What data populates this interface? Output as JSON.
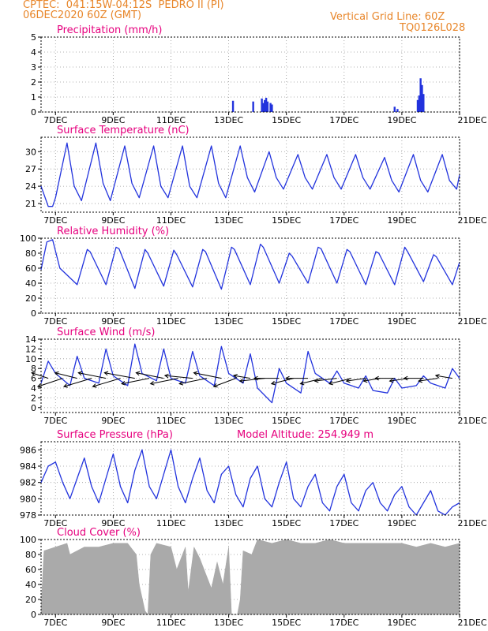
{
  "header": {
    "line1_left": "CPTEC:  041:15W-04:12S  PEDRO II (PI)",
    "line2_left": "06DEC2020 60Z (GMT)",
    "line1_right": "Vertical Grid Line: 60Z",
    "line2_right": "TQ0126L028",
    "color": "#e8862a"
  },
  "colors": {
    "title": "#e6007e",
    "series": "#2233dd",
    "cloud": "#aaaaaa",
    "grid": "#999999",
    "axis": "#000000"
  },
  "x_axis": {
    "ticks": [
      "7DEC",
      "9DEC",
      "11DEC",
      "13DEC",
      "15DEC",
      "17DEC",
      "19DEC",
      "21DEC"
    ],
    "tick_days": [
      7,
      9,
      11,
      13,
      15,
      17,
      19,
      21
    ],
    "range_days": [
      6.5,
      21
    ]
  },
  "chart_data": [
    {
      "id": "precip",
      "type": "bar",
      "title": "Precipitation (mm/h)",
      "ylim": [
        0,
        5
      ],
      "yticks": [
        0,
        1,
        2,
        3,
        4,
        5
      ],
      "x_days": [
        13.15,
        13.85,
        14.15,
        14.2,
        14.25,
        14.3,
        14.35,
        14.45,
        14.5,
        18.75,
        18.85,
        19.55,
        19.6,
        19.65,
        19.7,
        19.75
      ],
      "values": [
        0.75,
        0.7,
        0.9,
        0.6,
        0.8,
        0.95,
        0.7,
        0.6,
        0.5,
        0.35,
        0.2,
        0.8,
        1.1,
        2.25,
        1.8,
        1.2
      ]
    },
    {
      "id": "temp",
      "type": "line",
      "title": "Surface Temperature (nC)",
      "ylim": [
        19.5,
        32.5
      ],
      "yticks": [
        21,
        24,
        27,
        30
      ],
      "x_days": [
        6.5,
        6.75,
        6.9,
        7.0,
        7.4,
        7.65,
        7.9,
        8.4,
        8.65,
        8.9,
        9.4,
        9.65,
        9.9,
        10.4,
        10.65,
        10.9,
        11.4,
        11.65,
        11.9,
        12.4,
        12.65,
        12.9,
        13.4,
        13.65,
        13.9,
        14.4,
        14.65,
        14.9,
        15.4,
        15.65,
        15.9,
        16.4,
        16.65,
        16.9,
        17.4,
        17.65,
        17.9,
        18.4,
        18.65,
        18.9,
        19.4,
        19.65,
        19.9,
        20.4,
        20.65,
        20.9,
        21.0
      ],
      "values": [
        24.0,
        20.5,
        20.5,
        22.0,
        31.5,
        24.0,
        21.5,
        31.5,
        24.5,
        21.5,
        31.0,
        24.5,
        22.0,
        31.0,
        24.0,
        22.0,
        31.0,
        24.0,
        22.0,
        31.0,
        24.5,
        22.0,
        31.0,
        25.5,
        23.0,
        30.0,
        25.5,
        23.5,
        29.5,
        25.5,
        23.5,
        29.5,
        25.5,
        23.5,
        29.5,
        25.5,
        23.5,
        29.0,
        25.0,
        23.0,
        29.5,
        25.0,
        23.0,
        29.5,
        25.0,
        23.5,
        26.0
      ]
    },
    {
      "id": "rh",
      "type": "line",
      "title": "Relative Humidity (%)",
      "ylim": [
        0,
        100
      ],
      "yticks": [
        0,
        20,
        40,
        60,
        80,
        100
      ],
      "x_days": [
        6.5,
        6.7,
        6.9,
        7.15,
        7.75,
        8.1,
        8.2,
        8.75,
        9.1,
        9.2,
        9.75,
        10.1,
        10.2,
        10.75,
        11.1,
        11.2,
        11.75,
        12.1,
        12.2,
        12.75,
        13.1,
        13.2,
        13.75,
        14.1,
        14.2,
        14.75,
        15.1,
        15.2,
        15.75,
        16.1,
        16.2,
        16.75,
        17.1,
        17.2,
        17.75,
        18.1,
        18.2,
        18.75,
        19.1,
        19.2,
        19.75,
        20.1,
        20.2,
        20.75,
        21.0
      ],
      "values": [
        58,
        95,
        98,
        60,
        38,
        85,
        82,
        38,
        88,
        86,
        33,
        85,
        80,
        36,
        84,
        78,
        35,
        85,
        82,
        32,
        88,
        85,
        38,
        92,
        88,
        40,
        80,
        76,
        40,
        88,
        86,
        40,
        85,
        82,
        38,
        82,
        80,
        38,
        88,
        82,
        42,
        78,
        75,
        38,
        68
      ]
    },
    {
      "id": "wind",
      "type": "line",
      "title": "Surface Wind (m/s)",
      "ylim": [
        -1,
        14
      ],
      "yticks": [
        0,
        2,
        4,
        6,
        8,
        10,
        12,
        14
      ],
      "x_days": [
        6.5,
        6.75,
        7.0,
        7.5,
        7.75,
        8.0,
        8.5,
        8.75,
        9.0,
        9.5,
        9.75,
        10.0,
        10.5,
        10.75,
        11.0,
        11.5,
        11.75,
        12.0,
        12.5,
        12.75,
        13.0,
        13.5,
        13.75,
        14.0,
        14.5,
        14.75,
        15.0,
        15.5,
        15.75,
        16.0,
        16.5,
        16.75,
        17.0,
        17.5,
        17.75,
        18.0,
        18.5,
        18.75,
        19.0,
        19.5,
        19.75,
        20.0,
        20.5,
        20.75,
        21.0
      ],
      "values": [
        5.0,
        9.5,
        7.0,
        4.5,
        10.5,
        6.0,
        5.0,
        12.0,
        6.5,
        4.5,
        13.0,
        7.0,
        5.5,
        12.0,
        6.0,
        5.0,
        11.5,
        6.5,
        4.5,
        12.5,
        7.0,
        5.0,
        11.0,
        4.0,
        1.0,
        8.0,
        5.0,
        3.0,
        11.5,
        7.0,
        5.0,
        7.5,
        5.0,
        4.0,
        6.5,
        3.5,
        3.0,
        6.0,
        4.0,
        4.5,
        6.5,
        5.0,
        4.0,
        8.0,
        6.0
      ],
      "barbs": {
        "x_days": [
          6.75,
          7.25,
          7.75,
          8.25,
          8.75,
          9.25,
          9.75,
          10.25,
          10.75,
          11.25,
          11.75,
          12.25,
          12.75,
          13.25,
          13.75,
          14.25,
          14.75,
          15.25,
          15.75,
          16.25,
          16.75,
          17.25,
          17.75,
          18.25,
          18.75,
          19.25,
          19.75,
          20.25,
          20.75
        ],
        "u": [
          3.0,
          4.5,
          4.0,
          5.0,
          5.0,
          5.0,
          5.5,
          5.0,
          5.0,
          5.0,
          5.0,
          5.0,
          5.0,
          4.0,
          3.0,
          4.5,
          4.5,
          4.0,
          4.0,
          4.0,
          4.0,
          4.0,
          3.5,
          3.0,
          3.5,
          3.5,
          3.5,
          3.5,
          3.0
        ],
        "v": [
          1.0,
          -1.5,
          1.0,
          -1.5,
          1.0,
          -1.5,
          1.0,
          -1.0,
          1.0,
          -1.0,
          0.5,
          -1.0,
          1.0,
          -1.5,
          0.5,
          -0.5,
          0.0,
          -1.0,
          0.0,
          -1.0,
          -0.5,
          -1.0,
          -0.5,
          -0.5,
          0.0,
          -0.5,
          0.0,
          -0.5,
          0.5
        ]
      }
    },
    {
      "id": "pres",
      "type": "line",
      "title": "Surface Pressure (hPa)",
      "subtitle": "Model Altitude: 254.949 m",
      "ylim": [
        978,
        987
      ],
      "yticks": [
        978,
        980,
        982,
        984,
        986
      ],
      "x_days": [
        6.5,
        6.75,
        7.0,
        7.25,
        7.5,
        7.75,
        8.0,
        8.25,
        8.5,
        8.75,
        9.0,
        9.25,
        9.5,
        9.75,
        10.0,
        10.25,
        10.5,
        10.75,
        11.0,
        11.25,
        11.5,
        11.75,
        12.0,
        12.25,
        12.5,
        12.75,
        13.0,
        13.25,
        13.5,
        13.75,
        14.0,
        14.25,
        14.5,
        14.75,
        15.0,
        15.25,
        15.5,
        15.75,
        16.0,
        16.25,
        16.5,
        16.75,
        17.0,
        17.25,
        17.5,
        17.75,
        18.0,
        18.25,
        18.5,
        18.75,
        19.0,
        19.25,
        19.5,
        19.75,
        20.0,
        20.25,
        20.5,
        20.75,
        21.0
      ],
      "values": [
        982.0,
        984.0,
        984.5,
        982.0,
        980.0,
        982.5,
        985.0,
        981.5,
        979.5,
        982.5,
        985.5,
        981.5,
        979.5,
        983.5,
        986.0,
        981.5,
        980.0,
        983.0,
        986.0,
        981.5,
        979.5,
        982.5,
        985.0,
        981.0,
        979.5,
        983.0,
        984.0,
        980.5,
        979.0,
        982.5,
        984.0,
        980.0,
        979.0,
        982.0,
        984.5,
        980.0,
        979.0,
        981.5,
        983.0,
        979.5,
        978.5,
        981.5,
        983.0,
        979.5,
        978.5,
        981.0,
        982.0,
        979.5,
        978.5,
        980.5,
        981.5,
        979.0,
        978.0,
        979.5,
        981.0,
        978.5,
        978.0,
        979.0,
        979.5
      ]
    },
    {
      "id": "cloud",
      "type": "area",
      "title": "Cloud Cover (%)",
      "ylim": [
        0,
        100
      ],
      "yticks": [
        0,
        20,
        40,
        60,
        80,
        100
      ],
      "x_days": [
        6.5,
        6.6,
        7.0,
        7.4,
        7.5,
        8.0,
        8.5,
        9.0,
        9.5,
        9.8,
        9.9,
        10.1,
        10.2,
        10.3,
        10.5,
        11.0,
        11.2,
        11.5,
        11.6,
        11.8,
        12.0,
        12.2,
        12.4,
        12.6,
        12.8,
        13.0,
        13.1,
        13.3,
        13.4,
        13.5,
        13.8,
        14.0,
        14.5,
        15.0,
        15.5,
        16.0,
        16.5,
        17.0,
        17.5,
        18.0,
        18.5,
        19.0,
        19.5,
        20.0,
        20.5,
        21.0
      ],
      "values": [
        10,
        85,
        90,
        95,
        80,
        90,
        90,
        95,
        95,
        80,
        40,
        5,
        0,
        80,
        95,
        90,
        60,
        90,
        30,
        90,
        75,
        55,
        35,
        70,
        40,
        90,
        0,
        0,
        20,
        85,
        80,
        100,
        95,
        100,
        95,
        95,
        100,
        95,
        95,
        95,
        95,
        95,
        90,
        95,
        90,
        95
      ]
    }
  ]
}
